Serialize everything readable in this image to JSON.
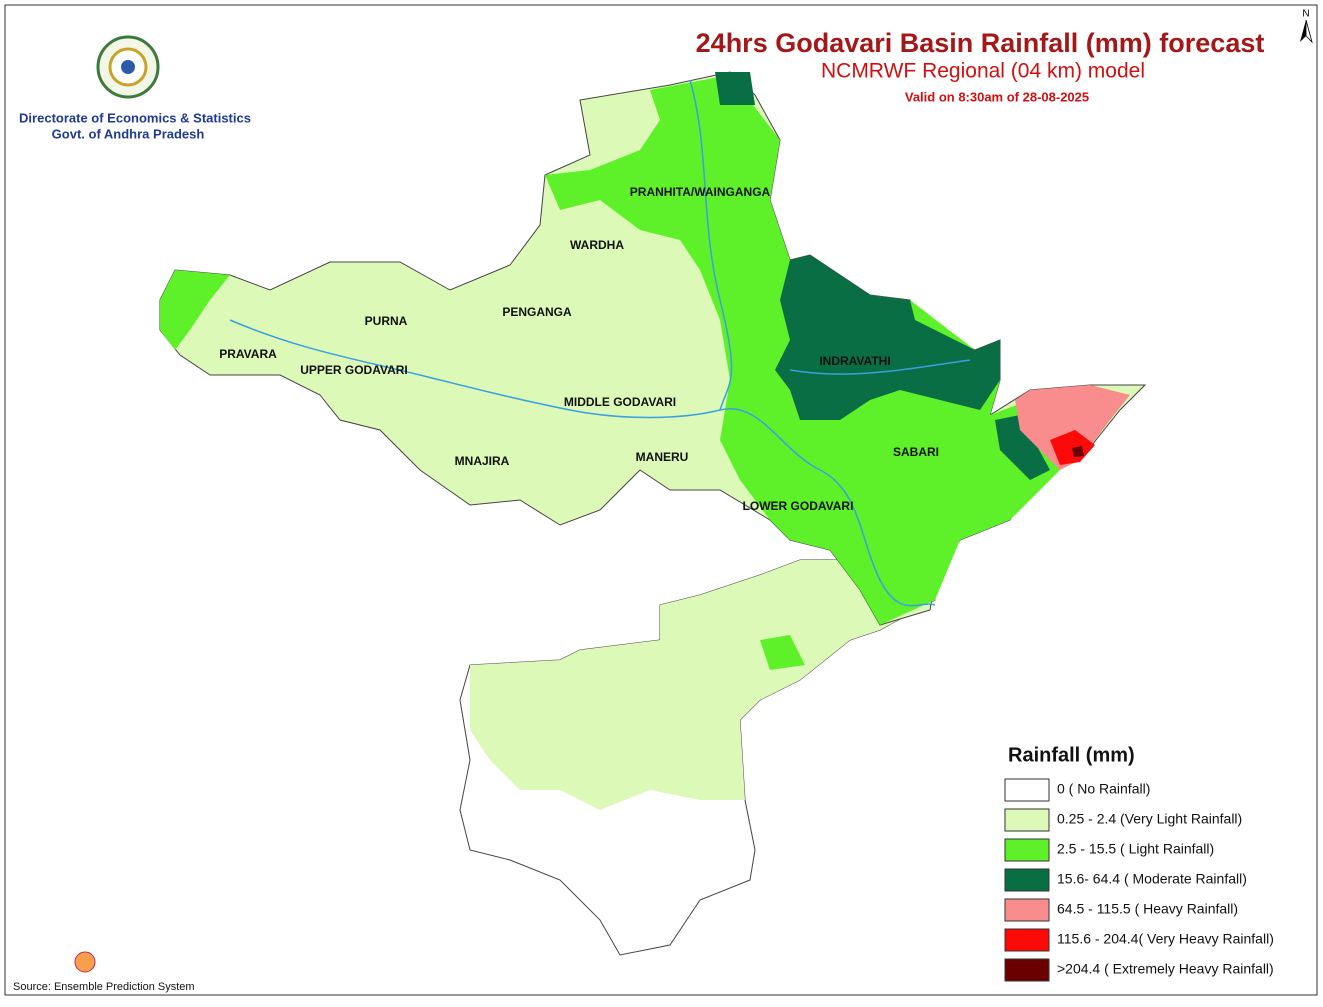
{
  "header": {
    "title": "24hrs Godavari Basin Rainfall (mm) forecast",
    "subtitle": "NCMRWF Regional (04 km) model",
    "valid": "Valid on 8:30am of 28-08-2025"
  },
  "org": {
    "line1": "Directorate of Economics & Statistics",
    "line2": "Govt. of Andhra Pradesh"
  },
  "north": "N",
  "labels": [
    "PRANHITA/WAINGANGA",
    "WARDHA",
    "PENGANGA",
    "PURNA",
    "PRAVARA",
    "UPPER GODAVARI",
    "INDRAVATHI",
    "MIDDLE GODAVARI",
    "SABARI",
    "MNAJIRA",
    "MANERU",
    "LOWER GODAVARI"
  ],
  "legend": {
    "title": "Rainfall (mm)",
    "items": [
      {
        "label": "0 ( No Rainfall)",
        "color": "#ffffff"
      },
      {
        "label": "0.25 - 2.4 (Very Light Rainfall)",
        "color": "#ddf9b8"
      },
      {
        "label": "2.5 - 15.5 ( Light Rainfall)",
        "color": "#5ef12a"
      },
      {
        "label": "15.6- 64.4 ( Moderate Rainfall)",
        "color": "#0a6e45"
      },
      {
        "label": "64.5 - 115.5 ( Heavy Rainfall)",
        "color": "#f98c8c"
      },
      {
        "label": "115.6 - 204.4( Very Heavy Rainfall)",
        "color": "#fc0a0a"
      },
      {
        "label": ">204.4 ( Extremely Heavy Rainfall)",
        "color": "#6b0000"
      }
    ]
  },
  "source": "Source: Ensemble Prediction System"
}
